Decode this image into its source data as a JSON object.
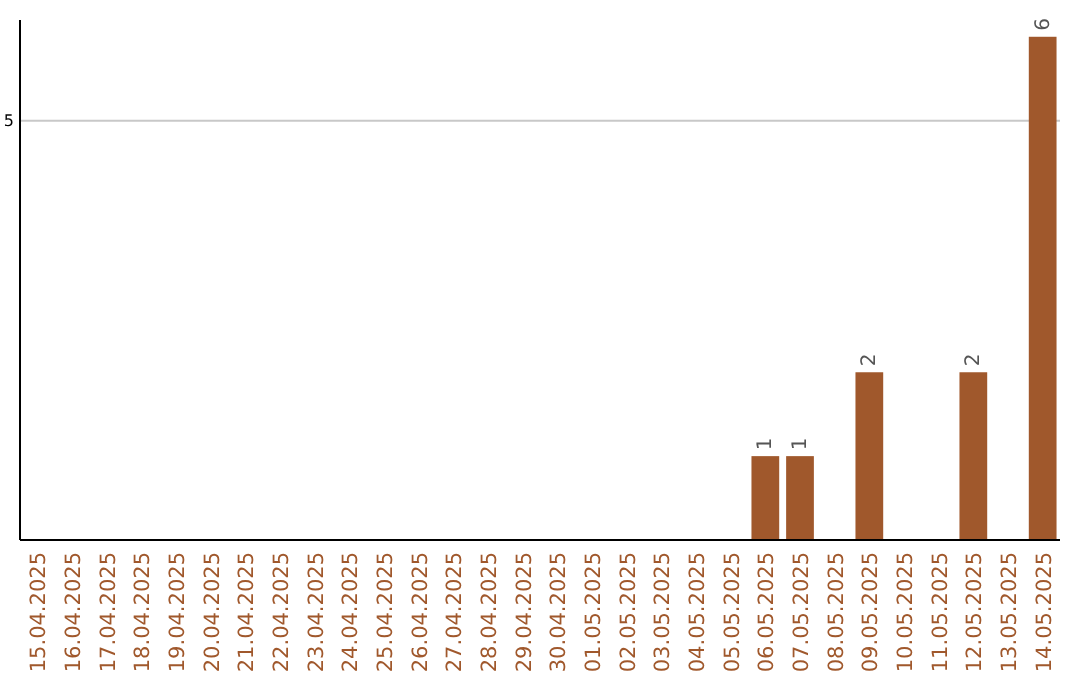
{
  "chart_data": {
    "type": "bar",
    "categories": [
      "15.04.2025",
      "16.04.2025",
      "17.04.2025",
      "18.04.2025",
      "19.04.2025",
      "20.04.2025",
      "21.04.2025",
      "22.04.2025",
      "23.04.2025",
      "24.04.2025",
      "25.04.2025",
      "26.04.2025",
      "27.04.2025",
      "28.04.2025",
      "29.04.2025",
      "30.04.2025",
      "01.05.2025",
      "02.05.2025",
      "03.05.2025",
      "04.05.2025",
      "05.05.2025",
      "06.05.2025",
      "07.05.2025",
      "08.05.2025",
      "09.05.2025",
      "10.05.2025",
      "11.05.2025",
      "12.05.2025",
      "13.05.2025",
      "14.05.2025"
    ],
    "values": [
      null,
      null,
      null,
      null,
      null,
      null,
      null,
      null,
      null,
      null,
      null,
      null,
      null,
      null,
      null,
      null,
      null,
      null,
      null,
      null,
      null,
      1,
      1,
      null,
      2,
      null,
      null,
      2,
      null,
      6
    ],
    "data_labels": true,
    "color": "#a0582c",
    "ylim": [
      0,
      6.2
    ],
    "yticks": [
      5
    ],
    "grid": true
  }
}
